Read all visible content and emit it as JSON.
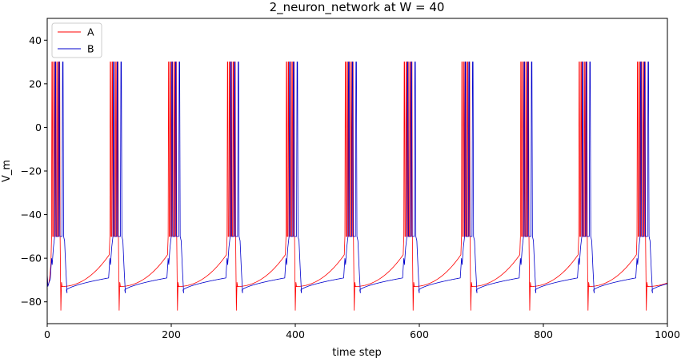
{
  "chart_data": {
    "type": "line",
    "title": "2_neuron_network at W = 40",
    "xlabel": "time step",
    "ylabel": "V_m",
    "xlim": [
      0,
      1000
    ],
    "ylim": [
      -90,
      50
    ],
    "xticks": [
      0,
      200,
      400,
      600,
      800,
      1000
    ],
    "yticks": [
      -80,
      -60,
      -40,
      -20,
      0,
      20,
      40
    ],
    "grid": false,
    "legend_position": "top-left",
    "period": 95,
    "spike_peak": 30,
    "series": [
      {
        "name": "A",
        "color": "#ff0000",
        "burst_starts": [
          7,
          101,
          195,
          290,
          385,
          480,
          575,
          668,
          763,
          857,
          951
        ],
        "spike_offsets": [
          0,
          3,
          6,
          9,
          12
        ],
        "rest_after_burst": -84,
        "ramp_start": -73,
        "ramp_end": -58
      },
      {
        "name": "B",
        "color": "#0000cc",
        "burst_starts": [
          12,
          106,
          200,
          295,
          390,
          485,
          580,
          673,
          768,
          862,
          956
        ],
        "spike_offsets": [
          0,
          6,
          12
        ],
        "rest_after_burst": -76,
        "ramp_start": -75,
        "ramp_end": -69,
        "plateau": -50
      }
    ]
  }
}
